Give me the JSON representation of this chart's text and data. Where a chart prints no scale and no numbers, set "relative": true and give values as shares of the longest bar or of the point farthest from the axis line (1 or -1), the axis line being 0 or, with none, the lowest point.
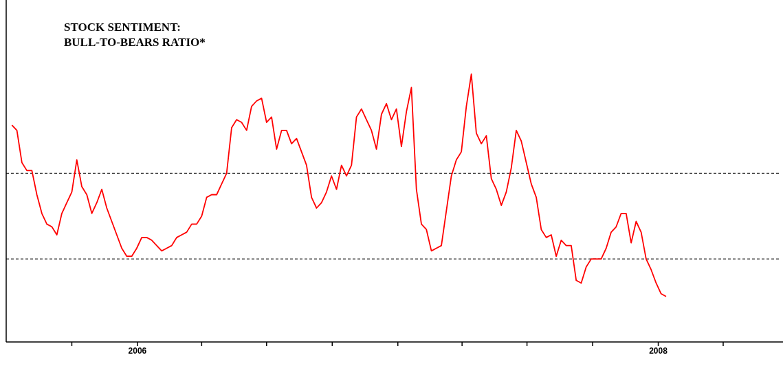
{
  "chart_data": {
    "type": "line",
    "title": "STOCK SENTIMENT:\nBULL-TO-BEARS RATIO*",
    "relative": true,
    "grid": false,
    "marker": "none",
    "line_style": "solid",
    "xlim": [
      "2005-07",
      "2008-06-20"
    ],
    "xticks": [
      {
        "value": "2005-10",
        "label": null
      },
      {
        "value": "2006",
        "label": "2006"
      },
      {
        "value": "2006-04",
        "label": null
      },
      {
        "value": "2006-07",
        "label": null
      },
      {
        "value": "2006-10",
        "label": null
      },
      {
        "value": "2007",
        "label": null
      },
      {
        "value": "2007-04",
        "label": null
      },
      {
        "value": "2007-07",
        "label": null
      },
      {
        "value": "2007-10",
        "label": null
      },
      {
        "value": "2008",
        "label": "2008"
      },
      {
        "value": "2008-04",
        "label": null
      }
    ],
    "ref_lines": [
      {
        "axis": "y",
        "value": 0.63,
        "color": "#000000",
        "line_style": "dashed"
      },
      {
        "axis": "y",
        "value": 0.31,
        "color": "#000000",
        "line_style": "dashed"
      }
    ],
    "x": [
      "2005-07-09",
      "2005-07-16",
      "2005-07-23",
      "2005-07-30",
      "2005-08-06",
      "2005-08-13",
      "2005-08-20",
      "2005-08-27",
      "2005-09-03",
      "2005-09-10",
      "2005-09-17",
      "2005-09-24",
      "2005-10-01",
      "2005-10-08",
      "2005-10-15",
      "2005-10-22",
      "2005-10-29",
      "2005-11-05",
      "2005-11-12",
      "2005-11-19",
      "2005-11-26",
      "2005-12-03",
      "2005-12-10",
      "2005-12-17",
      "2005-12-24",
      "2005-12-31",
      "2006-01-07",
      "2006-01-14",
      "2006-01-21",
      "2006-01-28",
      "2006-02-04",
      "2006-02-11",
      "2006-02-18",
      "2006-02-25",
      "2006-03-04",
      "2006-03-11",
      "2006-03-18",
      "2006-03-25",
      "2006-04-01",
      "2006-04-08",
      "2006-04-15",
      "2006-04-22",
      "2006-04-29",
      "2006-05-06",
      "2006-05-13",
      "2006-05-20",
      "2006-05-27",
      "2006-06-03",
      "2006-06-10",
      "2006-06-17",
      "2006-06-24",
      "2006-07-01",
      "2006-07-08",
      "2006-07-15",
      "2006-07-22",
      "2006-07-29",
      "2006-08-05",
      "2006-08-12",
      "2006-08-19",
      "2006-08-26",
      "2006-09-02",
      "2006-09-09",
      "2006-09-16",
      "2006-09-23",
      "2006-09-30",
      "2006-10-07",
      "2006-10-14",
      "2006-10-21",
      "2006-10-28",
      "2006-11-04",
      "2006-11-11",
      "2006-11-18",
      "2006-11-25",
      "2006-12-02",
      "2006-12-09",
      "2006-12-16",
      "2006-12-23",
      "2006-12-30",
      "2007-01-06",
      "2007-01-13",
      "2007-01-20",
      "2007-01-27",
      "2007-02-03",
      "2007-02-10",
      "2007-02-17",
      "2007-02-24",
      "2007-03-03",
      "2007-03-10",
      "2007-03-17",
      "2007-03-24",
      "2007-03-31",
      "2007-04-07",
      "2007-04-14",
      "2007-04-21",
      "2007-04-28",
      "2007-05-05",
      "2007-05-12",
      "2007-05-19",
      "2007-05-26",
      "2007-06-02",
      "2007-06-09",
      "2007-06-16",
      "2007-06-23",
      "2007-06-30",
      "2007-07-07",
      "2007-07-14",
      "2007-07-21",
      "2007-07-28",
      "2007-08-04",
      "2007-08-11",
      "2007-08-18",
      "2007-08-25",
      "2007-09-01",
      "2007-09-08",
      "2007-09-15",
      "2007-09-22",
      "2007-09-29",
      "2007-10-06",
      "2007-10-13",
      "2007-10-20",
      "2007-10-27",
      "2007-11-03",
      "2007-11-10",
      "2007-11-17",
      "2007-11-24",
      "2007-12-01",
      "2007-12-08",
      "2007-12-15",
      "2007-12-22",
      "2007-12-29",
      "2008-01-05",
      "2008-01-12"
    ],
    "series": [
      {
        "color": "#ff0000",
        "values": [
          0.81,
          0.79,
          0.67,
          0.64,
          0.64,
          0.55,
          0.48,
          0.44,
          0.43,
          0.4,
          0.48,
          0.52,
          0.56,
          0.68,
          0.58,
          0.55,
          0.48,
          0.52,
          0.57,
          0.5,
          0.45,
          0.4,
          0.35,
          0.32,
          0.32,
          0.35,
          0.39,
          0.39,
          0.38,
          0.36,
          0.34,
          0.35,
          0.36,
          0.39,
          0.4,
          0.41,
          0.44,
          0.44,
          0.47,
          0.54,
          0.55,
          0.55,
          0.59,
          0.63,
          0.8,
          0.83,
          0.82,
          0.79,
          0.88,
          0.9,
          0.91,
          0.82,
          0.84,
          0.72,
          0.79,
          0.79,
          0.74,
          0.76,
          0.71,
          0.66,
          0.54,
          0.5,
          0.52,
          0.56,
          0.62,
          0.57,
          0.66,
          0.62,
          0.66,
          0.84,
          0.87,
          0.83,
          0.79,
          0.72,
          0.85,
          0.89,
          0.83,
          0.87,
          0.73,
          0.86,
          0.95,
          0.57,
          0.44,
          0.42,
          0.34,
          0.35,
          0.36,
          0.49,
          0.62,
          0.68,
          0.71,
          0.88,
          1.0,
          0.78,
          0.74,
          0.77,
          0.61,
          0.57,
          0.51,
          0.56,
          0.65,
          0.79,
          0.75,
          0.67,
          0.59,
          0.54,
          0.42,
          0.39,
          0.4,
          0.32,
          0.38,
          0.36,
          0.36,
          0.23,
          0.22,
          0.28,
          0.31,
          0.31,
          0.31,
          0.35,
          0.41,
          0.43,
          0.48,
          0.48,
          0.37,
          0.45,
          0.41,
          0.31,
          0.27,
          0.22,
          0.18,
          0.17
        ]
      }
    ]
  }
}
